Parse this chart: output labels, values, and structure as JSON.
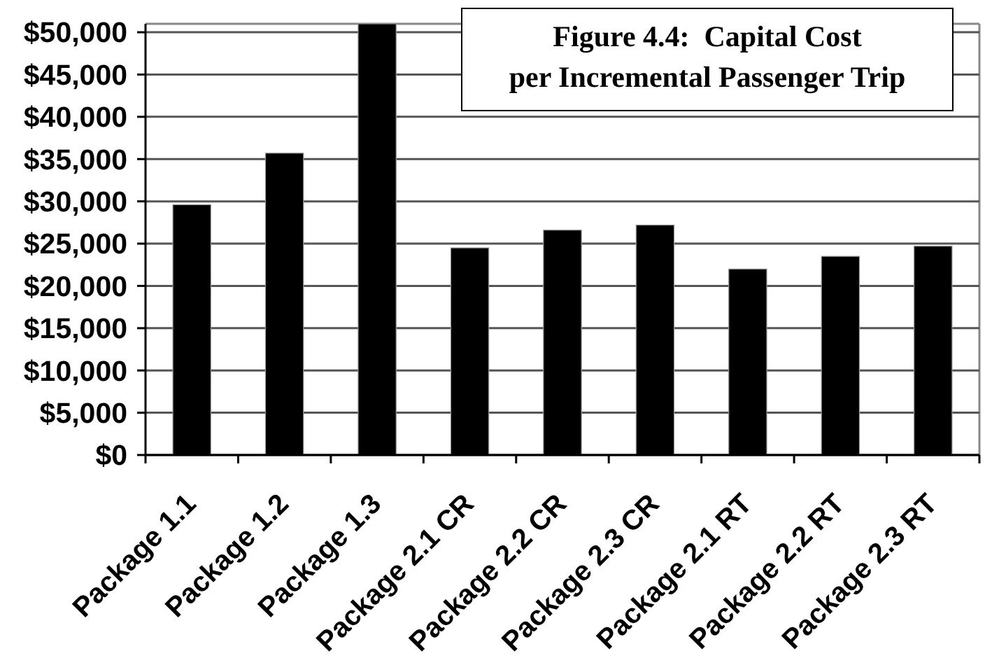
{
  "chart_data": {
    "type": "bar",
    "title": "Figure 4.4:  Capital Cost\nper Incremental Passenger Trip",
    "categories": [
      "Package 1.1",
      "Package 1.2",
      "Package 1.3",
      "Package 2.1 CR",
      "Package 2.2 CR",
      "Package 2.3 CR",
      "Package 2.1 RT",
      "Package 2.2 RT",
      "Package 2.3 RT"
    ],
    "values": [
      29600,
      35700,
      51000,
      24500,
      26600,
      27200,
      22000,
      23500,
      24700
    ],
    "color": "#000000",
    "ylim": [
      0,
      51000
    ],
    "yticks": [
      {
        "value": 0,
        "label": "$0"
      },
      {
        "value": 5000,
        "label": "$5,000"
      },
      {
        "value": 10000,
        "label": "$10,000"
      },
      {
        "value": 15000,
        "label": "$15,000"
      },
      {
        "value": 20000,
        "label": "$20,000"
      },
      {
        "value": 25000,
        "label": "$25,000"
      },
      {
        "value": 30000,
        "label": "$30,000"
      },
      {
        "value": 35000,
        "label": "$35,000"
      },
      {
        "value": 40000,
        "label": "$40,000"
      },
      {
        "value": 45000,
        "label": "$45,000"
      },
      {
        "value": 50000,
        "label": "$50,000"
      }
    ],
    "grid": "y"
  }
}
